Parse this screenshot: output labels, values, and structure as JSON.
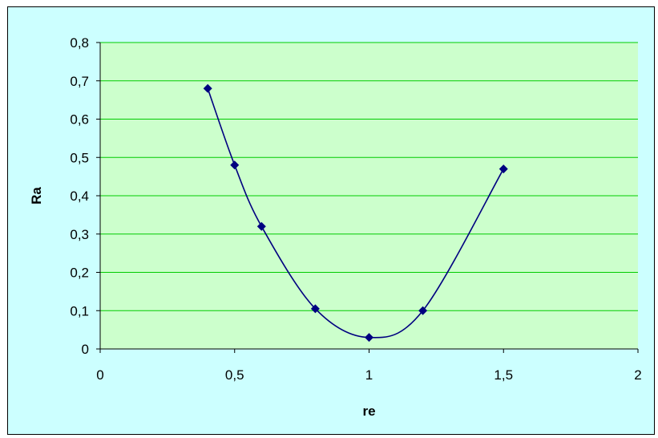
{
  "chart_data": {
    "type": "scatter",
    "xlabel": "re",
    "ylabel": "Ra",
    "xlim": [
      0,
      2
    ],
    "ylim": [
      0,
      0.8
    ],
    "x_ticks": [
      0,
      0.5,
      1,
      1.5,
      2
    ],
    "x_tick_labels": [
      "0",
      "0,5",
      "1",
      "1,5",
      "2"
    ],
    "y_ticks": [
      0,
      0.1,
      0.2,
      0.3,
      0.4,
      0.5,
      0.6,
      0.7,
      0.8
    ],
    "y_tick_labels": [
      "0",
      "0,1",
      "0,2",
      "0,3",
      "0,4",
      "0,5",
      "0,6",
      "0,7",
      "0,8"
    ],
    "grid": "horizontal",
    "smooth_line": true,
    "series": [
      {
        "x": [
          0.4,
          0.5,
          0.6,
          0.8,
          1.0,
          1.2,
          1.5
        ],
        "y": [
          0.68,
          0.48,
          0.32,
          0.105,
          0.03,
          0.1,
          0.47
        ]
      }
    ],
    "colors": {
      "plot_background": "#ccffcc",
      "chart_background": "#ccffff",
      "gridline": "#00cc00",
      "series": "#000080"
    }
  }
}
